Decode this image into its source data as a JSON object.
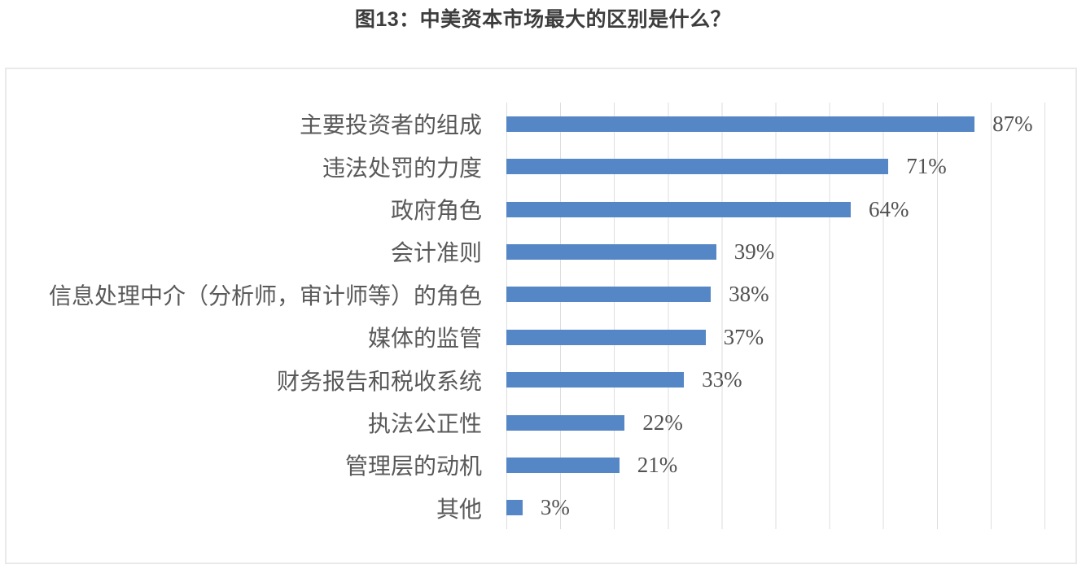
{
  "title": {
    "text": "图13：中美资本市场最大的区别是什么？",
    "color": "#3d3d3d"
  },
  "chart_data": {
    "type": "bar",
    "orientation": "horizontal",
    "title": "图13：中美资本市场最大的区别是什么？",
    "categories": [
      "主要投资者的组成",
      "违法处罚的力度",
      "政府角色",
      "会计准则",
      "信息处理中介（分析师，审计师等）的角色",
      "媒体的监管",
      "财务报告和税收系统",
      "执法公正性",
      "管理层的动机",
      "其他"
    ],
    "values": [
      87,
      71,
      64,
      39,
      38,
      37,
      33,
      22,
      21,
      3
    ],
    "value_labels": [
      "87%",
      "71%",
      "64%",
      "39%",
      "38%",
      "37%",
      "33%",
      "22%",
      "21%",
      "3%"
    ],
    "xlabel": "",
    "ylabel": "",
    "xlim": [
      0,
      100
    ],
    "gridline_interval_percent": 10,
    "grid": true,
    "legend": false,
    "colors": {
      "bar": "#5586C5",
      "gridline": "#DEDEDE",
      "category_label": "#595959",
      "value_label": "#525252",
      "chart_border": "#E9E9E9"
    }
  }
}
